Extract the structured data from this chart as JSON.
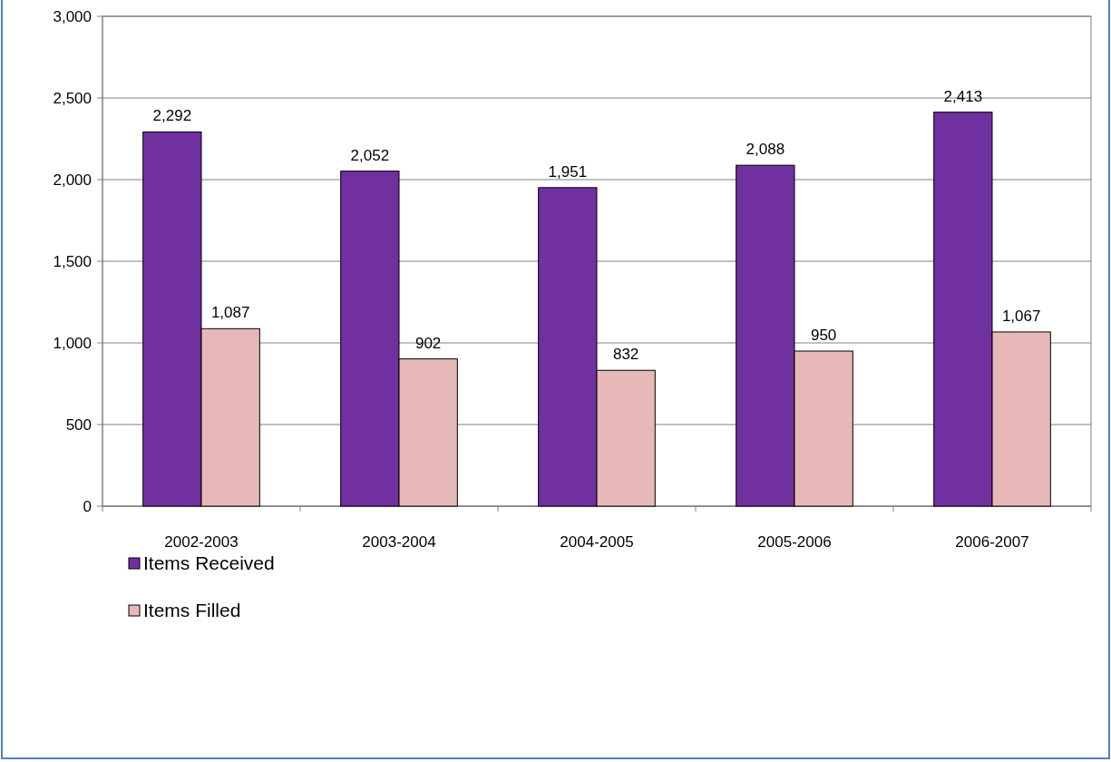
{
  "chart_data": {
    "type": "bar",
    "categories": [
      "2002-2003",
      "2003-2004",
      "2004-2005",
      "2005-2006",
      "2006-2007"
    ],
    "series": [
      {
        "name": "Items Received",
        "color": "#7030a0",
        "values": [
          2292,
          2052,
          1951,
          2088,
          2413
        ],
        "value_labels": [
          "2,292",
          "2,052",
          "1,951",
          "2,088",
          "2,413"
        ]
      },
      {
        "name": "Items Filled",
        "color": "#e6b9b8",
        "values": [
          1087,
          902,
          832,
          950,
          1067
        ],
        "value_labels": [
          "1,087",
          "902",
          "832",
          "950",
          "1,067"
        ]
      }
    ],
    "ylim": [
      0,
      3000
    ],
    "yticks": [
      {
        "value": 0,
        "label": "0"
      },
      {
        "value": 500,
        "label": "500"
      },
      {
        "value": 1000,
        "label": "1,000"
      },
      {
        "value": 1500,
        "label": "1,500"
      },
      {
        "value": 2000,
        "label": "2,000"
      },
      {
        "value": 2500,
        "label": "2,500"
      },
      {
        "value": 3000,
        "label": "3,000"
      }
    ],
    "grid": "y",
    "legend": "bottom left"
  }
}
